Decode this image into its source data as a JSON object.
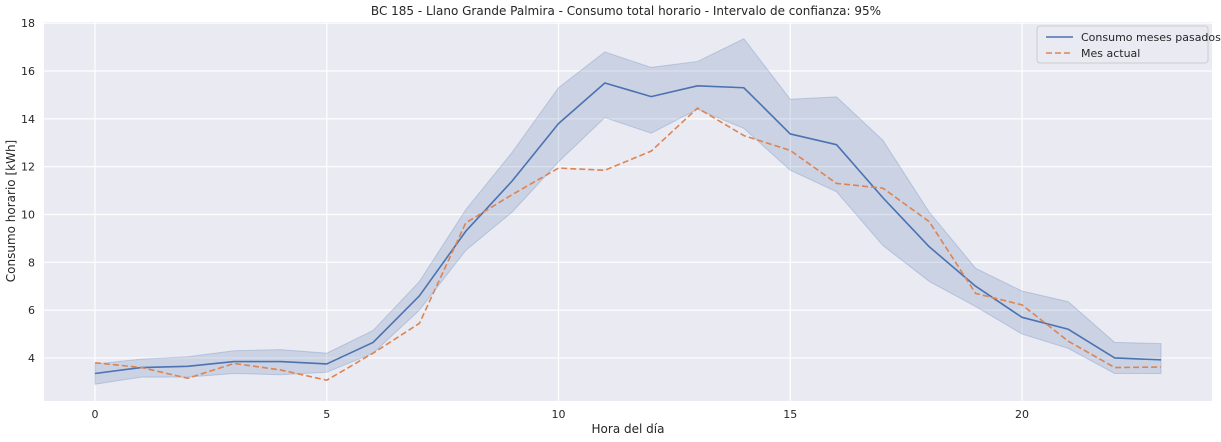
{
  "chart_data": {
    "type": "line",
    "title": "BC 185 - Llano Grande Palmira - Consumo total horario - Intervalo de confianza: 95%",
    "xlabel": "Hora del día",
    "ylabel": "Consumo horario [kWh]",
    "xlim": [
      -1.1,
      24.1
    ],
    "ylim": [
      2.2,
      18.05
    ],
    "xticks": [
      0,
      5,
      10,
      15,
      20
    ],
    "yticks": [
      4,
      6,
      8,
      10,
      12,
      14,
      16,
      18
    ],
    "grid": true,
    "legend_position": "top-right",
    "x": [
      0,
      1,
      2,
      3,
      4,
      5,
      6,
      7,
      8,
      9,
      10,
      11,
      12,
      13,
      14,
      15,
      16,
      17,
      18,
      19,
      20,
      21,
      22,
      23
    ],
    "series": [
      {
        "name": "Consumo meses pasados",
        "color": "#4c72b0",
        "style": "solid",
        "values": [
          3.35,
          3.6,
          3.65,
          3.85,
          3.85,
          3.75,
          4.65,
          6.6,
          9.3,
          11.4,
          13.8,
          15.5,
          14.93,
          15.38,
          15.3,
          13.37,
          12.92,
          10.7,
          8.65,
          7.0,
          5.7,
          5.2,
          4.0,
          3.92
        ],
        "ci_lower": [
          2.9,
          3.2,
          3.2,
          3.35,
          3.3,
          3.4,
          4.2,
          6.0,
          8.5,
          10.1,
          12.2,
          14.05,
          13.4,
          14.4,
          13.6,
          11.85,
          10.95,
          8.7,
          7.2,
          6.15,
          5.0,
          4.4,
          3.35,
          3.35
        ],
        "ci_upper": [
          3.75,
          3.95,
          4.05,
          4.3,
          4.35,
          4.2,
          5.15,
          7.2,
          10.2,
          12.6,
          15.3,
          16.8,
          16.15,
          16.4,
          17.35,
          14.82,
          14.92,
          13.1,
          10.1,
          7.75,
          6.8,
          6.35,
          4.65,
          4.6
        ]
      },
      {
        "name": "Mes actual",
        "color": "#dd8452",
        "style": "dashed",
        "values": [
          3.8,
          3.6,
          3.15,
          3.77,
          3.5,
          3.07,
          4.2,
          5.45,
          9.65,
          10.83,
          11.94,
          11.85,
          12.65,
          14.45,
          13.3,
          12.68,
          11.3,
          11.1,
          9.7,
          6.7,
          6.22,
          4.7,
          3.6,
          3.62
        ]
      }
    ]
  }
}
